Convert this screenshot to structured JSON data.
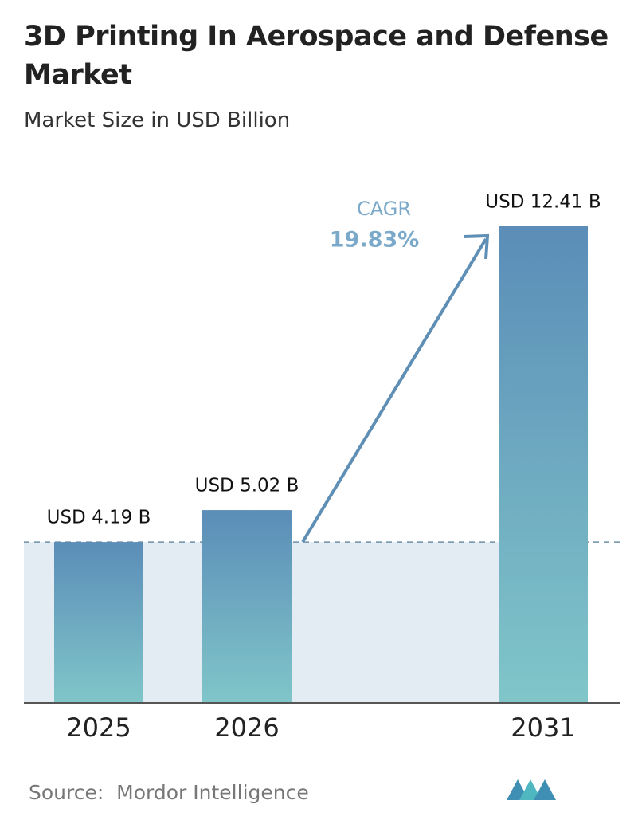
{
  "chart_data": {
    "type": "bar",
    "title": "3D Printing In Aerospace and Defense Market",
    "subtitle": "Market Size in USD Billion",
    "categories": [
      "2025",
      "2026",
      "2031"
    ],
    "values": [
      4.19,
      5.02,
      12.41
    ],
    "value_labels": [
      "USD 4.19 B",
      "USD 5.02 B",
      "USD 12.41 B"
    ],
    "color": [
      "#5b8db8",
      "#80c6c9"
    ],
    "cagr_label": "CAGR",
    "cagr_value": "19.83%",
    "source": "Source:  Mordor Intelligence"
  }
}
